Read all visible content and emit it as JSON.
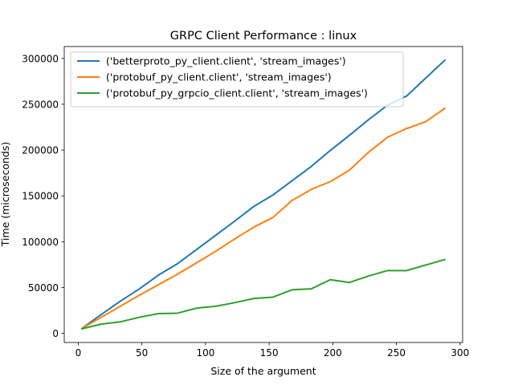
{
  "chart_data": {
    "type": "line",
    "title": "GRPC Client Performance : linux",
    "xlabel": "Size of the argument",
    "ylabel": "Time (microseconds)",
    "xlim": [
      -11,
      302
    ],
    "ylim": [
      -10000,
      313000
    ],
    "xticks": [
      0,
      50,
      100,
      150,
      200,
      250,
      300
    ],
    "yticks": [
      0,
      50000,
      100000,
      150000,
      200000,
      250000,
      300000
    ],
    "legend_position": "top-left",
    "grid": false,
    "series": [
      {
        "name": "('betterproto_py_client.client', 'stream_images')",
        "color": "#1f77b4",
        "x": [
          3,
          18,
          33,
          48,
          63,
          78,
          93,
          108,
          123,
          138,
          153,
          168,
          183,
          198,
          213,
          228,
          243,
          258,
          273,
          288
        ],
        "y": [
          5500,
          20500,
          35000,
          48500,
          63500,
          76000,
          91500,
          107000,
          122500,
          138500,
          151000,
          166500,
          182000,
          199500,
          216000,
          233000,
          249000,
          259000,
          278500,
          298000
        ]
      },
      {
        "name": "('protobuf_py_client.client', 'stream_images')",
        "color": "#ff7f0e",
        "x": [
          3,
          18,
          33,
          48,
          63,
          78,
          93,
          108,
          123,
          138,
          153,
          168,
          183,
          198,
          213,
          228,
          243,
          258,
          273,
          288
        ],
        "y": [
          5500,
          17500,
          29500,
          41500,
          53000,
          64500,
          77000,
          89500,
          103000,
          116000,
          126500,
          145000,
          157000,
          165500,
          178000,
          197500,
          214000,
          223500,
          231000,
          245500
        ]
      },
      {
        "name": "('protobuf_py_grpcio_client.client', 'stream_images')",
        "color": "#2ca02c",
        "x": [
          3,
          18,
          33,
          48,
          63,
          78,
          93,
          108,
          123,
          138,
          153,
          168,
          183,
          198,
          213,
          228,
          243,
          258,
          273,
          288
        ],
        "y": [
          5000,
          10000,
          12500,
          17500,
          21500,
          22000,
          27500,
          29500,
          33500,
          38000,
          39500,
          47500,
          48500,
          58500,
          55500,
          62500,
          68500,
          68500,
          74500,
          80500
        ]
      }
    ]
  }
}
